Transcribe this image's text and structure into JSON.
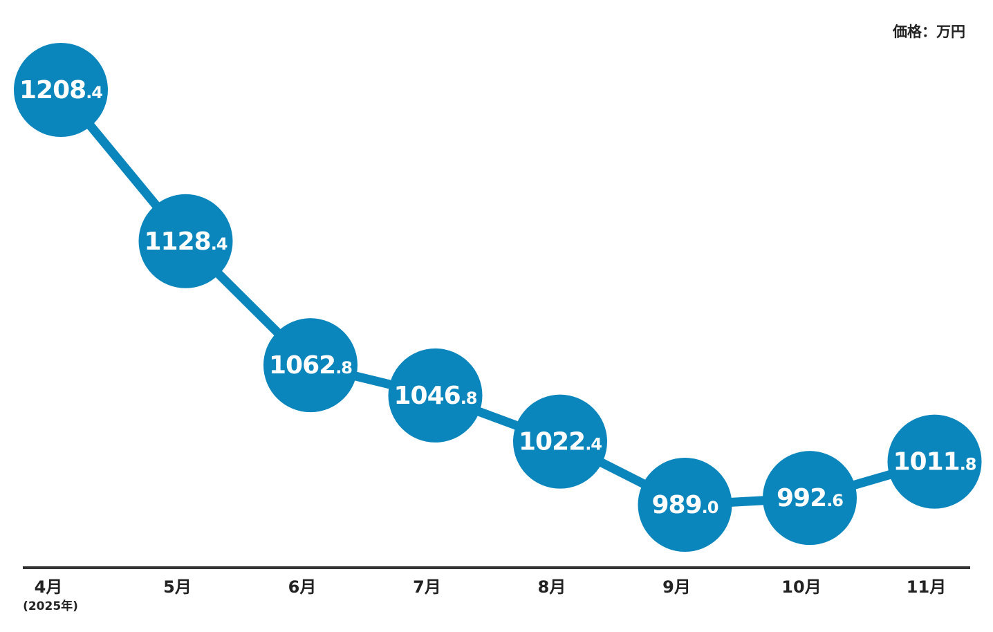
{
  "chart_data": {
    "type": "line",
    "unit_label": "価格：万円",
    "categories": [
      "4月",
      "5月",
      "6月",
      "7月",
      "8月",
      "9月",
      "10月",
      "11月"
    ],
    "category_sublabels": [
      "(2025年)",
      "",
      "",
      "",
      "",
      "",
      "",
      ""
    ],
    "values": [
      1208.4,
      1128.4,
      1062.8,
      1046.8,
      1022.4,
      989.0,
      992.6,
      1011.8
    ],
    "value_labels": [
      {
        "int": "1208",
        "dec": ".4"
      },
      {
        "int": "1128",
        "dec": ".4"
      },
      {
        "int": "1062",
        "dec": ".8"
      },
      {
        "int": "1046",
        "dec": ".8"
      },
      {
        "int": "1022",
        "dec": ".4"
      },
      {
        "int": "989",
        "dec": ".0"
      },
      {
        "int": "992",
        "dec": ".6"
      },
      {
        "int": "1011",
        "dec": ".8"
      }
    ],
    "colors": {
      "series": "#0a86bd",
      "label_text": "#ffffff",
      "axis": "#333333"
    },
    "grid": false,
    "legend": "none"
  }
}
